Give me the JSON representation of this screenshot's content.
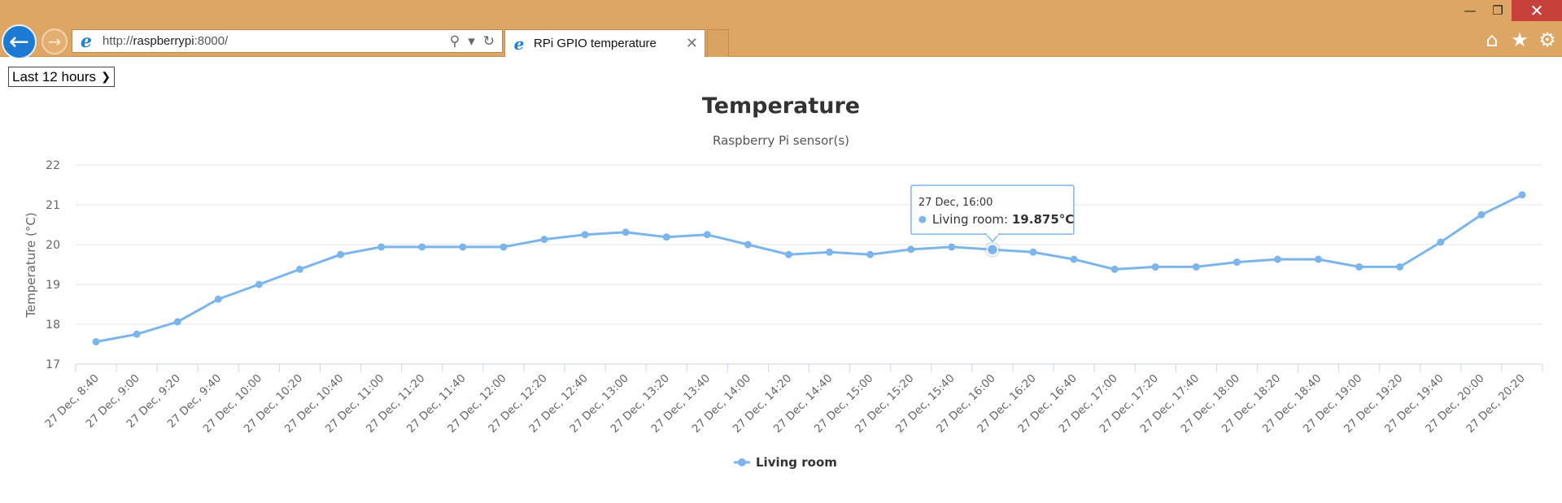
{
  "browser": {
    "url_scheme": "http://",
    "url_host": "raspberrypi",
    "url_rest": ":8000/",
    "tab_title": "RPi GPIO temperature"
  },
  "controls": {
    "range_selected": "Last 12 hours"
  },
  "tooltip": {
    "header": "27 Dec, 16:00",
    "series_label": "Living room: ",
    "value_text": "19.875°C"
  },
  "colors": {
    "series": "#7cb5ec",
    "chrome": "#dda664",
    "back_button": "#1c7ad3"
  },
  "chart_data": {
    "type": "line",
    "title": "Temperature",
    "subtitle": "Raspberry Pi sensor(s)",
    "ylabel": "Temperature (°C)",
    "ylim": [
      17,
      22
    ],
    "yticks": [
      17,
      18,
      19,
      20,
      21,
      22
    ],
    "grid": true,
    "legend_position": "bottom-center",
    "categories": [
      "27 Dec, 8:40",
      "27 Dec, 9:00",
      "27 Dec, 9:20",
      "27 Dec, 9:40",
      "27 Dec, 10:00",
      "27 Dec, 10:20",
      "27 Dec, 10:40",
      "27 Dec, 11:00",
      "27 Dec, 11:20",
      "27 Dec, 11:40",
      "27 Dec, 12:00",
      "27 Dec, 12:20",
      "27 Dec, 12:40",
      "27 Dec, 13:00",
      "27 Dec, 13:20",
      "27 Dec, 13:40",
      "27 Dec, 14:00",
      "27 Dec, 14:20",
      "27 Dec, 14:40",
      "27 Dec, 15:00",
      "27 Dec, 15:20",
      "27 Dec, 15:40",
      "27 Dec, 16:00",
      "27 Dec, 16:20",
      "27 Dec, 16:40",
      "27 Dec, 17:00",
      "27 Dec, 17:20",
      "27 Dec, 17:40",
      "27 Dec, 18:00",
      "27 Dec, 18:20",
      "27 Dec, 18:40",
      "27 Dec, 19:00",
      "27 Dec, 19:20",
      "27 Dec, 19:40",
      "27 Dec, 20:00",
      "27 Dec, 20:20"
    ],
    "series": [
      {
        "name": "Living room",
        "color": "#7cb5ec",
        "values": [
          17.56,
          17.75,
          18.06,
          18.63,
          19.0,
          19.38,
          19.75,
          19.94,
          19.94,
          19.94,
          19.94,
          20.13,
          20.25,
          20.31,
          20.19,
          20.25,
          20.0,
          19.75,
          19.81,
          19.75,
          19.88,
          19.94,
          19.875,
          19.81,
          19.63,
          19.38,
          19.44,
          19.44,
          19.56,
          19.63,
          19.63,
          19.44,
          19.44,
          20.06,
          20.75,
          21.25
        ]
      }
    ],
    "highlight_index": 22
  }
}
